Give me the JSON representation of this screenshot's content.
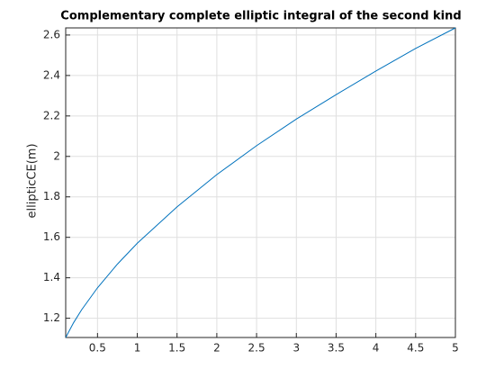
{
  "chart_data": {
    "type": "line",
    "title": "Complementary complete elliptic integral of the second kind",
    "y_label": "ellipticCE(m)",
    "x": [
      0.1,
      0.2,
      0.3,
      0.5,
      0.75,
      1,
      1.5,
      2,
      2.5,
      3,
      3.5,
      4,
      4.5,
      5
    ],
    "values": [
      1.1048,
      1.1785,
      1.2417,
      1.3506,
      1.4675,
      1.5708,
      1.7503,
      1.9101,
      2.0529,
      2.1845,
      2.3052,
      2.4221,
      2.5335,
      2.6352
    ],
    "color": "#0072bd",
    "xlim": [
      0.1,
      5
    ],
    "ylim": [
      1.1048,
      2.6352
    ],
    "xticks": [
      0.5,
      1,
      1.5,
      2,
      2.5,
      3,
      3.5,
      4,
      4.5,
      5
    ],
    "yticks": [
      1.2,
      1.4,
      1.6,
      1.8,
      2,
      2.2,
      2.4,
      2.6
    ],
    "grid": true
  }
}
